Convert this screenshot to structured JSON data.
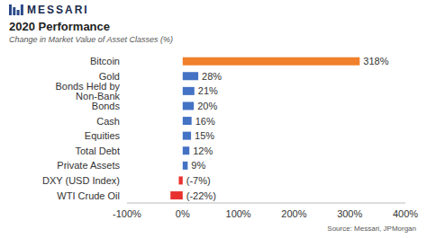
{
  "header": {
    "logo": "MESSARI"
  },
  "chart_data": {
    "type": "bar",
    "title": "2020 Performance",
    "subtitle": "Change in Market Value of Asset Classes (%)",
    "source": "Source: Messari, JPMorgan",
    "orientation": "horizontal",
    "categories": [
      "Bitcoin",
      "Gold",
      "Bonds Held by Non-Bank",
      "Bonds",
      "Cash",
      "Equities",
      "Total Debt",
      "Private Assets",
      "DXY (USD Index)",
      "WTI Crude Oil"
    ],
    "values": [
      318,
      28,
      21,
      20,
      16,
      15,
      12,
      9,
      -7,
      -22
    ],
    "value_labels": [
      "318%",
      "28%",
      "21%",
      "20%",
      "16%",
      "15%",
      "12%",
      "9%",
      "(-7%)",
      "(-22%)"
    ],
    "colors": [
      "#f0802b",
      "#4472c4",
      "#4472c4",
      "#4472c4",
      "#4472c4",
      "#4472c4",
      "#4472c4",
      "#4472c4",
      "#e8312f",
      "#e8312f"
    ],
    "xlim": [
      -100,
      400
    ],
    "xticks": [
      {
        "value": -100,
        "label": "-100%"
      },
      {
        "value": 0,
        "label": "0%"
      },
      {
        "value": 100,
        "label": "100%"
      },
      {
        "value": 200,
        "label": "200%"
      },
      {
        "value": 300,
        "label": "300%"
      },
      {
        "value": 400,
        "label": "400%"
      }
    ],
    "data_labels": true,
    "grid": false
  }
}
